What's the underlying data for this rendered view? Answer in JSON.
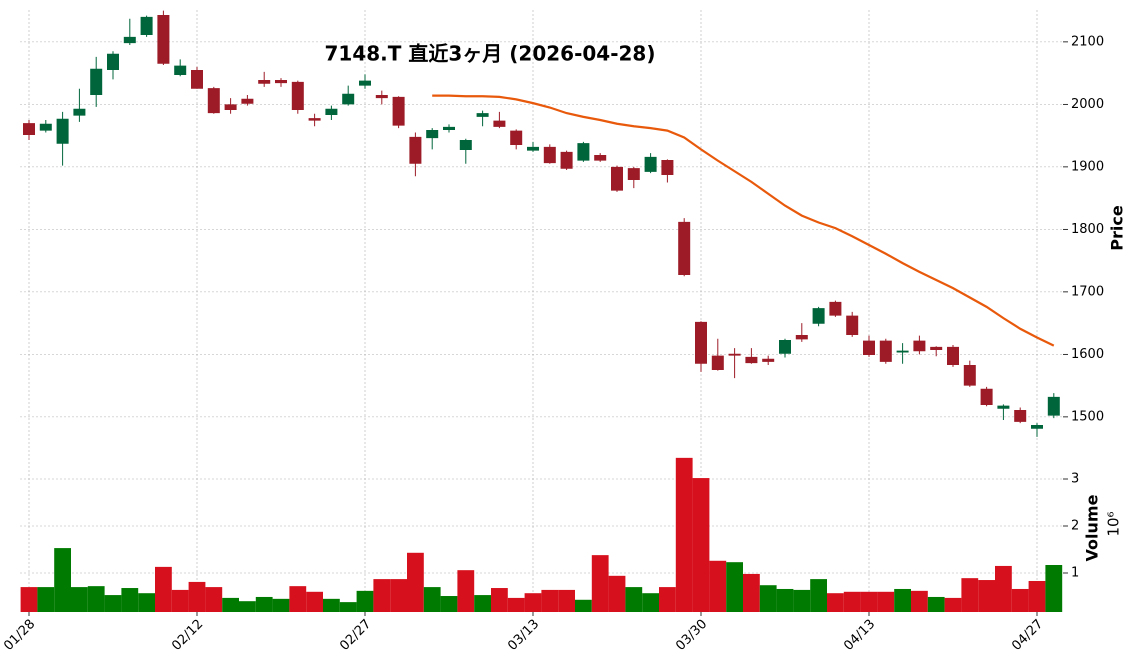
{
  "chart_data": {
    "type": "candlestick",
    "title": "7148.T  直近3ヶ月  (2026-04-28)",
    "categories": [
      "01/28",
      null,
      null,
      null,
      null,
      null,
      null,
      null,
      null,
      null,
      "02/12",
      null,
      null,
      null,
      null,
      null,
      null,
      null,
      null,
      null,
      "02/27",
      null,
      null,
      null,
      null,
      null,
      null,
      null,
      null,
      null,
      "03/13",
      null,
      null,
      null,
      null,
      null,
      null,
      null,
      null,
      null,
      "03/30",
      null,
      null,
      null,
      null,
      null,
      null,
      null,
      null,
      null,
      "04/13",
      null,
      null,
      null,
      null,
      null,
      null,
      null,
      null,
      null,
      "04/27",
      null
    ],
    "open": [
      1970,
      1958,
      1937,
      1982,
      2015,
      2055,
      2098,
      2111,
      2143,
      2047,
      2055,
      2026,
      2000,
      2009,
      2039,
      2039,
      2036,
      1978,
      1983,
      2000,
      2030,
      2015,
      2012,
      1948,
      1946,
      1959,
      1927,
      1980,
      1974,
      1958,
      1926,
      1932,
      1924,
      1910,
      1919,
      1900,
      1898,
      1892,
      1911,
      1812,
      1652,
      1598,
      1601,
      1596,
      1593,
      1601,
      1631,
      1649,
      1684,
      1662,
      1622,
      1622,
      1603,
      1622,
      1612,
      1612,
      1583,
      1545,
      1513,
      1511,
      1481,
      1502
    ],
    "high": [
      1975,
      1975,
      1988,
      2025,
      2076,
      2085,
      2137,
      2142,
      2150,
      2072,
      2060,
      2028,
      2010,
      2015,
      2052,
      2042,
      2038,
      1985,
      1998,
      2030,
      2048,
      2022,
      2013,
      1955,
      1962,
      1968,
      1945,
      1990,
      1988,
      1960,
      1940,
      1936,
      1926,
      1940,
      1922,
      1902,
      1900,
      1922,
      1912,
      1818,
      1653,
      1625,
      1610,
      1610,
      1598,
      1625,
      1650,
      1676,
      1686,
      1668,
      1630,
      1625,
      1618,
      1630,
      1613,
      1615,
      1590,
      1548,
      1520,
      1515,
      1490,
      1538
    ],
    "low": [
      1943,
      1955,
      1902,
      1972,
      1996,
      2040,
      2095,
      2108,
      2063,
      2045,
      2025,
      1985,
      1985,
      1998,
      2028,
      2028,
      1985,
      1965,
      1975,
      1998,
      2025,
      2000,
      1962,
      1885,
      1928,
      1955,
      1905,
      1965,
      1962,
      1928,
      1924,
      1905,
      1895,
      1908,
      1908,
      1860,
      1866,
      1890,
      1875,
      1725,
      1572,
      1574,
      1562,
      1585,
      1583,
      1595,
      1620,
      1645,
      1660,
      1628,
      1596,
      1585,
      1585,
      1600,
      1597,
      1580,
      1548,
      1517,
      1495,
      1490,
      1468,
      1498
    ],
    "close": [
      1951,
      1969,
      1977,
      1993,
      2057,
      2081,
      2108,
      2140,
      2065,
      2062,
      2025,
      1986,
      1991,
      2001,
      2033,
      2034,
      1991,
      1974,
      1993,
      2017,
      2038,
      2010,
      1966,
      1905,
      1959,
      1964,
      1943,
      1986,
      1964,
      1935,
      1932,
      1906,
      1897,
      1938,
      1910,
      1862,
      1879,
      1916,
      1887,
      1727,
      1585,
      1575,
      1598,
      1586,
      1588,
      1623,
      1624,
      1674,
      1662,
      1631,
      1599,
      1588,
      1606,
      1605,
      1607,
      1583,
      1550,
      1519,
      1518,
      1492,
      1487,
      1532
    ],
    "up_color": "#00653b",
    "down_color": "#9c1b27",
    "moving_average": {
      "color": "#e8590c",
      "values": [
        null,
        null,
        null,
        null,
        null,
        null,
        null,
        null,
        null,
        null,
        null,
        null,
        null,
        null,
        null,
        null,
        null,
        null,
        null,
        null,
        null,
        null,
        null,
        null,
        2014,
        2014,
        2013,
        2013,
        2012,
        2008,
        2002,
        1995,
        1986,
        1980,
        1975,
        1969,
        1965,
        1962,
        1958,
        1947,
        1928,
        1910,
        1893,
        1876,
        1857,
        1838,
        1822,
        1811,
        1802,
        1789,
        1775,
        1761,
        1746,
        1732,
        1719,
        1706,
        1691,
        1676,
        1658,
        1641,
        1627,
        1614
      ]
    },
    "ylabel": "Price",
    "ylim": [
      1463,
      2151
    ],
    "yticks": [
      1500,
      1600,
      1700,
      1800,
      1900,
      2000,
      2100
    ],
    "grid": true,
    "volume": {
      "ylabel": "Volume",
      "scale_label": "10⁶",
      "up_color": "#007a00",
      "down_color": "#d6101c",
      "values": [
        0.7,
        0.7,
        1.53,
        0.7,
        0.72,
        0.53,
        0.68,
        0.57,
        1.13,
        0.64,
        0.81,
        0.7,
        0.47,
        0.4,
        0.49,
        0.45,
        0.72,
        0.6,
        0.45,
        0.38,
        0.62,
        0.87,
        0.87,
        1.43,
        0.7,
        0.51,
        1.06,
        0.53,
        0.68,
        0.47,
        0.57,
        0.64,
        0.64,
        0.43,
        1.38,
        0.94,
        0.7,
        0.57,
        0.7,
        3.45,
        3.02,
        1.26,
        1.23,
        0.98,
        0.74,
        0.66,
        0.64,
        0.87,
        0.57,
        0.6,
        0.6,
        0.6,
        0.66,
        0.62,
        0.49,
        0.47,
        0.89,
        0.85,
        1.15,
        0.66,
        0.83,
        1.17
      ],
      "ylim": [
        0.17,
        3.83
      ],
      "yticks": [
        1,
        2,
        3
      ]
    }
  }
}
